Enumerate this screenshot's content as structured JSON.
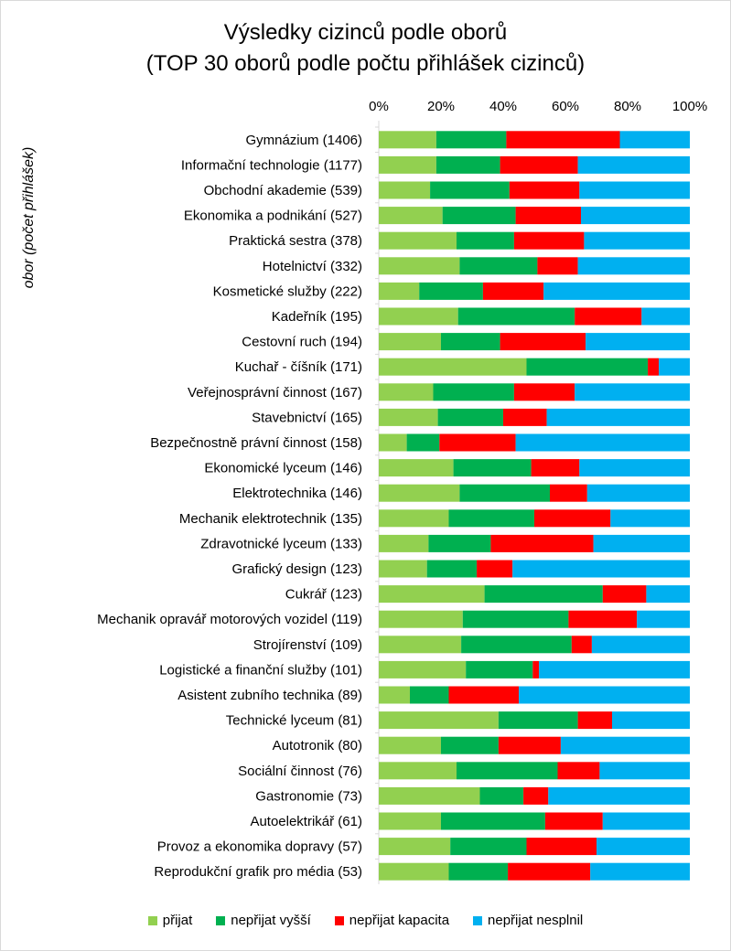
{
  "chart_data": {
    "type": "bar",
    "orientation": "horizontal",
    "stacked": "percent",
    "title": "Výsledky cizinců podle oborů",
    "subtitle": "(TOP 30 oborů podle počtu přihlášek cizinců)",
    "ylabel": "obor (počet přihlášek)",
    "xlabel": "",
    "xlim": [
      0,
      100
    ],
    "xticks": [
      "0%",
      "20%",
      "40%",
      "60%",
      "80%",
      "100%"
    ],
    "categories": [
      "Gymnázium (1406)",
      "Informační technologie (1177)",
      "Obchodní akademie (539)",
      "Ekonomika a podnikání (527)",
      "Praktická sestra (378)",
      "Hotelnictví (332)",
      "Kosmetické služby (222)",
      "Kadeřník (195)",
      "Cestovní ruch (194)",
      "Kuchař - číšník (171)",
      "Veřejnosprávní činnost (167)",
      "Stavebnictví (165)",
      "Bezpečnostně právní činnost (158)",
      "Ekonomické lyceum (146)",
      "Elektrotechnika (146)",
      "Mechanik elektrotechnik (135)",
      "Zdravotnické lyceum (133)",
      "Grafický design (123)",
      "Cukrář (123)",
      "Mechanik opravář motorových vozidel (119)",
      "Strojírenství (109)",
      "Logistické a finanční služby (101)",
      "Asistent zubního technika (89)",
      "Technické lyceum (81)",
      "Autotronik (80)",
      "Sociální činnost (76)",
      "Gastronomie (73)",
      "Autoelektrikář (61)",
      "Provoz a ekonomika dopravy (57)",
      "Reprodukční grafik pro média (53)"
    ],
    "series": [
      {
        "name": "přijat",
        "color": "#92d050",
        "values": [
          18.5,
          18.5,
          16.5,
          20.5,
          25,
          26,
          13,
          25.5,
          20,
          47.5,
          17.5,
          19,
          9,
          24,
          26,
          22.5,
          16,
          15.5,
          34,
          27,
          26.5,
          28,
          10,
          38.5,
          20,
          25,
          32.5,
          20,
          23,
          22.5
        ]
      },
      {
        "name": "nepřijat vyšší",
        "color": "#00b050",
        "values": [
          22.5,
          20.5,
          25.5,
          23.5,
          18.5,
          25,
          20.5,
          37.5,
          19,
          39,
          26,
          21,
          10.5,
          25,
          29,
          27.5,
          20,
          16,
          38,
          34,
          35.5,
          21.5,
          12.5,
          25.5,
          18.5,
          32.5,
          14,
          33.5,
          24.5,
          19
        ]
      },
      {
        "name": "nepřijat kapacita",
        "color": "#ff0000",
        "values": [
          36.5,
          25,
          22.5,
          21,
          22.5,
          13,
          19.5,
          21.5,
          27.5,
          3.5,
          19.5,
          14,
          24.5,
          15.5,
          12,
          24.5,
          33,
          11.5,
          14,
          22,
          6.5,
          2,
          22.5,
          11,
          20,
          13.5,
          8,
          18.5,
          22.5,
          26.5
        ]
      },
      {
        "name": "nepřijat nesplnil",
        "color": "#00b0f0",
        "values": [
          22.5,
          36,
          35.5,
          35,
          34,
          36,
          47,
          15.5,
          33.5,
          10,
          37,
          46,
          56,
          35.5,
          33,
          25.5,
          31,
          57,
          14,
          17,
          31.5,
          48.5,
          55,
          25,
          41.5,
          29,
          45.5,
          28,
          30,
          32
        ]
      }
    ]
  }
}
